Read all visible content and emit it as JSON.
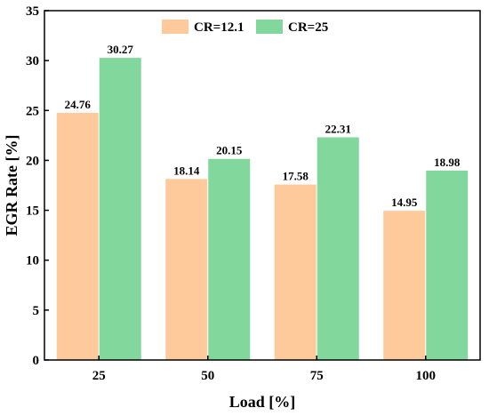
{
  "chart_data": {
    "type": "bar",
    "title": "",
    "xlabel": "Load [%]",
    "ylabel": "EGR Rate [%]",
    "categories": [
      "25",
      "50",
      "75",
      "100"
    ],
    "ylim": [
      0,
      35
    ],
    "yticks": [
      "0",
      "5",
      "10",
      "15",
      "20",
      "25",
      "30",
      "35"
    ],
    "series": [
      {
        "name": "CR=12.1",
        "color": "#ffca9b",
        "values": [
          24.76,
          18.14,
          17.58,
          14.95
        ],
        "labels": [
          "24.76",
          "18.14",
          "17.58",
          "14.95"
        ]
      },
      {
        "name": "CR=25",
        "color": "#82d89c",
        "values": [
          30.27,
          20.15,
          22.31,
          18.98
        ],
        "labels": [
          "30.27",
          "20.15",
          "22.31",
          "18.98"
        ]
      }
    ],
    "legend_position": "top-center",
    "grid": false
  }
}
